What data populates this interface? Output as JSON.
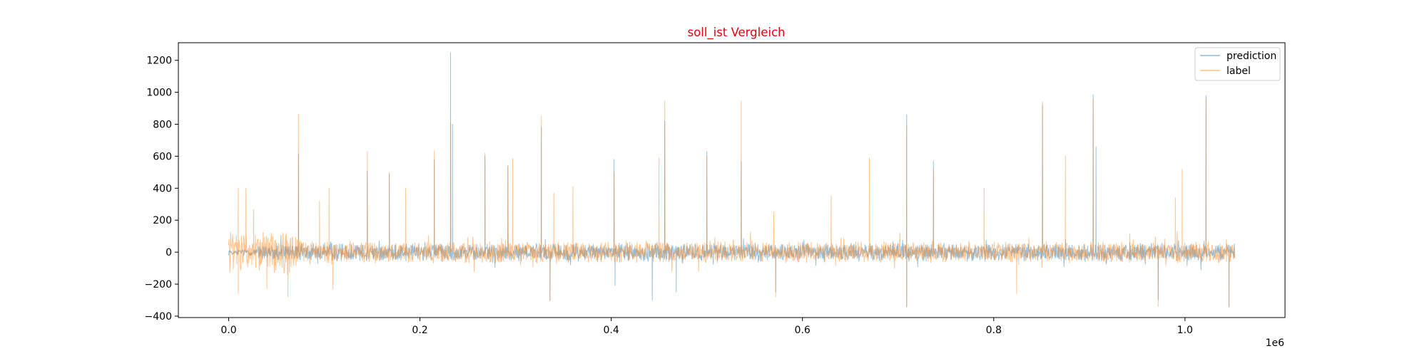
{
  "colors": {
    "title": "#e8000b",
    "prediction": "#1f77b4",
    "label": "#ff7f0e",
    "axes": "#000000",
    "background": "#ffffff"
  },
  "chart_data": {
    "type": "line",
    "title": "soll_ist Vergleich",
    "xlabel": "",
    "ylabel": "",
    "x_offset_text": "1e6",
    "xlim": [
      -0.0526,
      1.1046
    ],
    "ylim": [
      -409,
      1310
    ],
    "x_ticks": [
      0.0,
      0.2,
      0.4,
      0.6,
      0.8,
      1.0
    ],
    "x_tick_labels": [
      "0.0",
      "0.2",
      "0.4",
      "0.6",
      "0.8",
      "1.0"
    ],
    "y_ticks": [
      -400,
      -200,
      0,
      200,
      400,
      600,
      800,
      1000,
      1200
    ],
    "y_tick_labels": [
      "−400",
      "−200",
      "0",
      "200",
      "400",
      "600",
      "800",
      "1000",
      "1200"
    ],
    "legend": {
      "placement": "top-right",
      "entries": [
        "prediction",
        "label"
      ]
    },
    "grid": false,
    "x_range_data": [
      0.0,
      1.052
    ],
    "noise_amplitude_label": 55,
    "noise_amplitude_prediction": 45,
    "series": [
      {
        "name": "prediction",
        "spikes": [
          [
            0.073,
            615
          ],
          [
            0.145,
            505
          ],
          [
            0.168,
            490
          ],
          [
            0.215,
            580
          ],
          [
            0.232,
            1248
          ],
          [
            0.234,
            800
          ],
          [
            0.268,
            600
          ],
          [
            0.292,
            540
          ],
          [
            0.327,
            780
          ],
          [
            0.403,
            580
          ],
          [
            0.456,
            820
          ],
          [
            0.5,
            630
          ],
          [
            0.536,
            570
          ],
          [
            0.709,
            860
          ],
          [
            0.737,
            570
          ],
          [
            0.851,
            920
          ],
          [
            0.904,
            985
          ],
          [
            0.907,
            660
          ],
          [
            1.022,
            980
          ],
          [
            0.336,
            -300
          ],
          [
            0.443,
            -300
          ],
          [
            0.709,
            -340
          ],
          [
            0.972,
            -300
          ],
          [
            1.046,
            -340
          ],
          [
            0.404,
            -210
          ],
          [
            0.468,
            -250
          ],
          [
            0.572,
            -250
          ]
        ]
      },
      {
        "name": "label",
        "spikes": [
          [
            0.01,
            400
          ],
          [
            0.018,
            400
          ],
          [
            0.026,
            265
          ],
          [
            0.073,
            865
          ],
          [
            0.095,
            320
          ],
          [
            0.105,
            400
          ],
          [
            0.145,
            630
          ],
          [
            0.168,
            500
          ],
          [
            0.185,
            400
          ],
          [
            0.215,
            635
          ],
          [
            0.232,
            815
          ],
          [
            0.268,
            620
          ],
          [
            0.292,
            540
          ],
          [
            0.297,
            585
          ],
          [
            0.327,
            850
          ],
          [
            0.34,
            370
          ],
          [
            0.36,
            410
          ],
          [
            0.403,
            500
          ],
          [
            0.45,
            590
          ],
          [
            0.456,
            945
          ],
          [
            0.5,
            600
          ],
          [
            0.536,
            945
          ],
          [
            0.57,
            250
          ],
          [
            0.63,
            350
          ],
          [
            0.67,
            590
          ],
          [
            0.709,
            790
          ],
          [
            0.737,
            520
          ],
          [
            0.79,
            400
          ],
          [
            0.851,
            940
          ],
          [
            0.875,
            600
          ],
          [
            0.904,
            960
          ],
          [
            0.99,
            340
          ],
          [
            0.997,
            520
          ],
          [
            1.022,
            965
          ],
          [
            0.01,
            -260
          ],
          [
            0.04,
            -230
          ],
          [
            0.062,
            -280
          ],
          [
            0.109,
            -230
          ],
          [
            0.336,
            -305
          ],
          [
            0.709,
            -345
          ],
          [
            0.972,
            -340
          ],
          [
            1.046,
            -345
          ],
          [
            0.572,
            -280
          ],
          [
            0.824,
            -260
          ]
        ]
      }
    ]
  }
}
